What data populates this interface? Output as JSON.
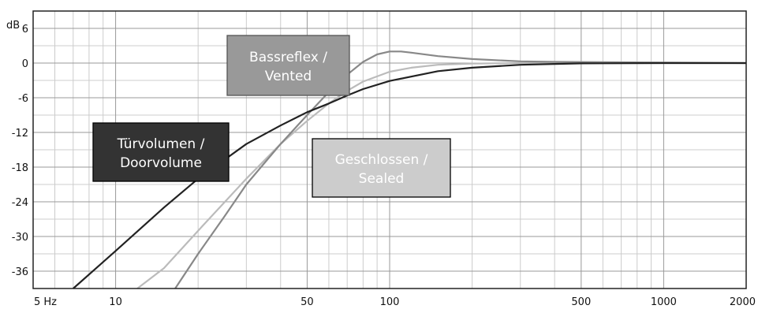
{
  "chart_data": {
    "type": "line",
    "title": "",
    "xlabel": "",
    "ylabel": "dB",
    "x_scale": "log",
    "xlim": [
      5,
      2000
    ],
    "ylim": [
      -39,
      9
    ],
    "x_tick_labels": [
      {
        "value": 5,
        "label": "5 Hz"
      },
      {
        "value": 10,
        "label": "10"
      },
      {
        "value": 50,
        "label": "50"
      },
      {
        "value": 100,
        "label": "100"
      },
      {
        "value": 500,
        "label": "500"
      },
      {
        "value": 1000,
        "label": "1000"
      },
      {
        "value": 2000,
        "label": "2000"
      }
    ],
    "y_tick_labels": [
      {
        "value": 6,
        "label": "6"
      },
      {
        "value": 0,
        "label": "0"
      },
      {
        "value": -6,
        "label": "-6"
      },
      {
        "value": -12,
        "label": "-12"
      },
      {
        "value": -18,
        "label": "-18"
      },
      {
        "value": -24,
        "label": "-24"
      },
      {
        "value": -30,
        "label": "-30"
      },
      {
        "value": -36,
        "label": "-36"
      }
    ],
    "grid": true,
    "series": [
      {
        "name": "Türvolumen / Doorvolume",
        "color": "#222222",
        "label_box": {
          "fill": "#333333",
          "text_color": "#ffffff",
          "border": "#000000"
        },
        "x": [
          7,
          10,
          15,
          20,
          30,
          40,
          50,
          60,
          70,
          80,
          100,
          150,
          200,
          300,
          400,
          500,
          1000,
          2000
        ],
        "y": [
          -39.5,
          -32.5,
          -25,
          -20,
          -14,
          -10.8,
          -8.5,
          -7,
          -5.6,
          -4.5,
          -3.1,
          -1.4,
          -0.8,
          -0.3,
          -0.15,
          -0.05,
          0,
          0
        ]
      },
      {
        "name": "Bassreflex / Vented",
        "color": "#888888",
        "label_box": {
          "fill": "#999999",
          "text_color": "#ffffff",
          "border": "#555555"
        },
        "x": [
          16.5,
          20,
          25,
          30,
          40,
          50,
          60,
          70,
          80,
          90,
          100,
          110,
          120,
          150,
          200,
          300,
          400,
          1000,
          2000
        ],
        "y": [
          -39.5,
          -33,
          -26.5,
          -21,
          -14,
          -9,
          -5,
          -2,
          0.2,
          1.5,
          2.0,
          2.0,
          1.8,
          1.2,
          0.7,
          0.3,
          0.2,
          0.1,
          0
        ]
      },
      {
        "name": "Geschlossen / Sealed",
        "color": "#bbbbbb",
        "label_box": {
          "fill": "#cccccc",
          "text_color": "#ffffff",
          "border": "#000000"
        },
        "x": [
          12,
          15,
          20,
          30,
          40,
          50,
          60,
          70,
          80,
          100,
          120,
          150,
          200,
          300,
          400,
          500,
          1000,
          2000
        ],
        "y": [
          -39.5,
          -35.5,
          -29,
          -20,
          -14,
          -10,
          -7,
          -4.8,
          -3.2,
          -1.5,
          -0.8,
          -0.3,
          -0.1,
          0,
          0,
          0,
          0,
          0
        ]
      }
    ]
  }
}
